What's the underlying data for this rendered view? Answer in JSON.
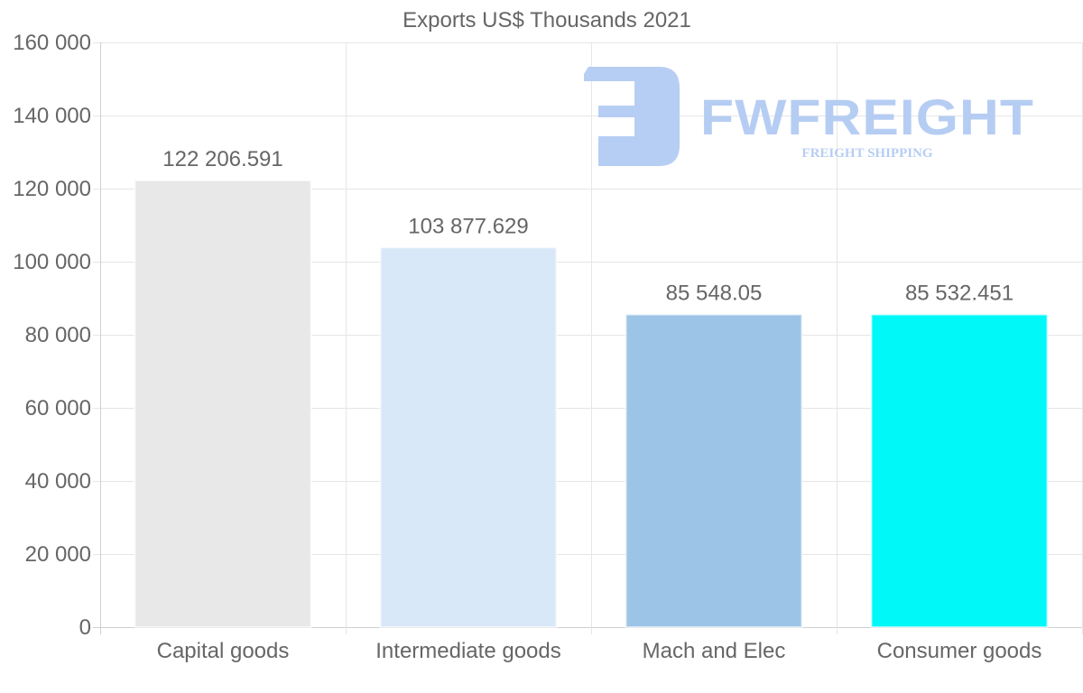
{
  "chart_data": {
    "type": "bar",
    "title": "Exports US$ Thousands 2021",
    "categories": [
      "Capital goods",
      "Intermediate goods",
      "Mach and Elec",
      "Consumer goods"
    ],
    "values": [
      122206.591,
      103877.629,
      85548.05,
      85532.451
    ],
    "data_labels": [
      "122 206.591",
      "103 877.629",
      "85 548.05",
      "85 532.451"
    ],
    "colors": [
      "#e8e8e8",
      "#d8e8f8",
      "#9cc4e6",
      "#00f8f8"
    ],
    "ylim": [
      0,
      160000
    ],
    "yticks": [
      0,
      20000,
      40000,
      60000,
      80000,
      100000,
      120000,
      140000,
      160000
    ],
    "ytick_labels": [
      "0",
      "20 000",
      "40 000",
      "60 000",
      "80 000",
      "100 000",
      "120 000",
      "140 000",
      "160 000"
    ],
    "xlabel": "",
    "ylabel": "",
    "grid": true,
    "legend": "none"
  },
  "watermark": {
    "brand": "FWFREIGHT",
    "tagline": "FREIGHT SHIPPING",
    "color": "#b3cbf3"
  }
}
